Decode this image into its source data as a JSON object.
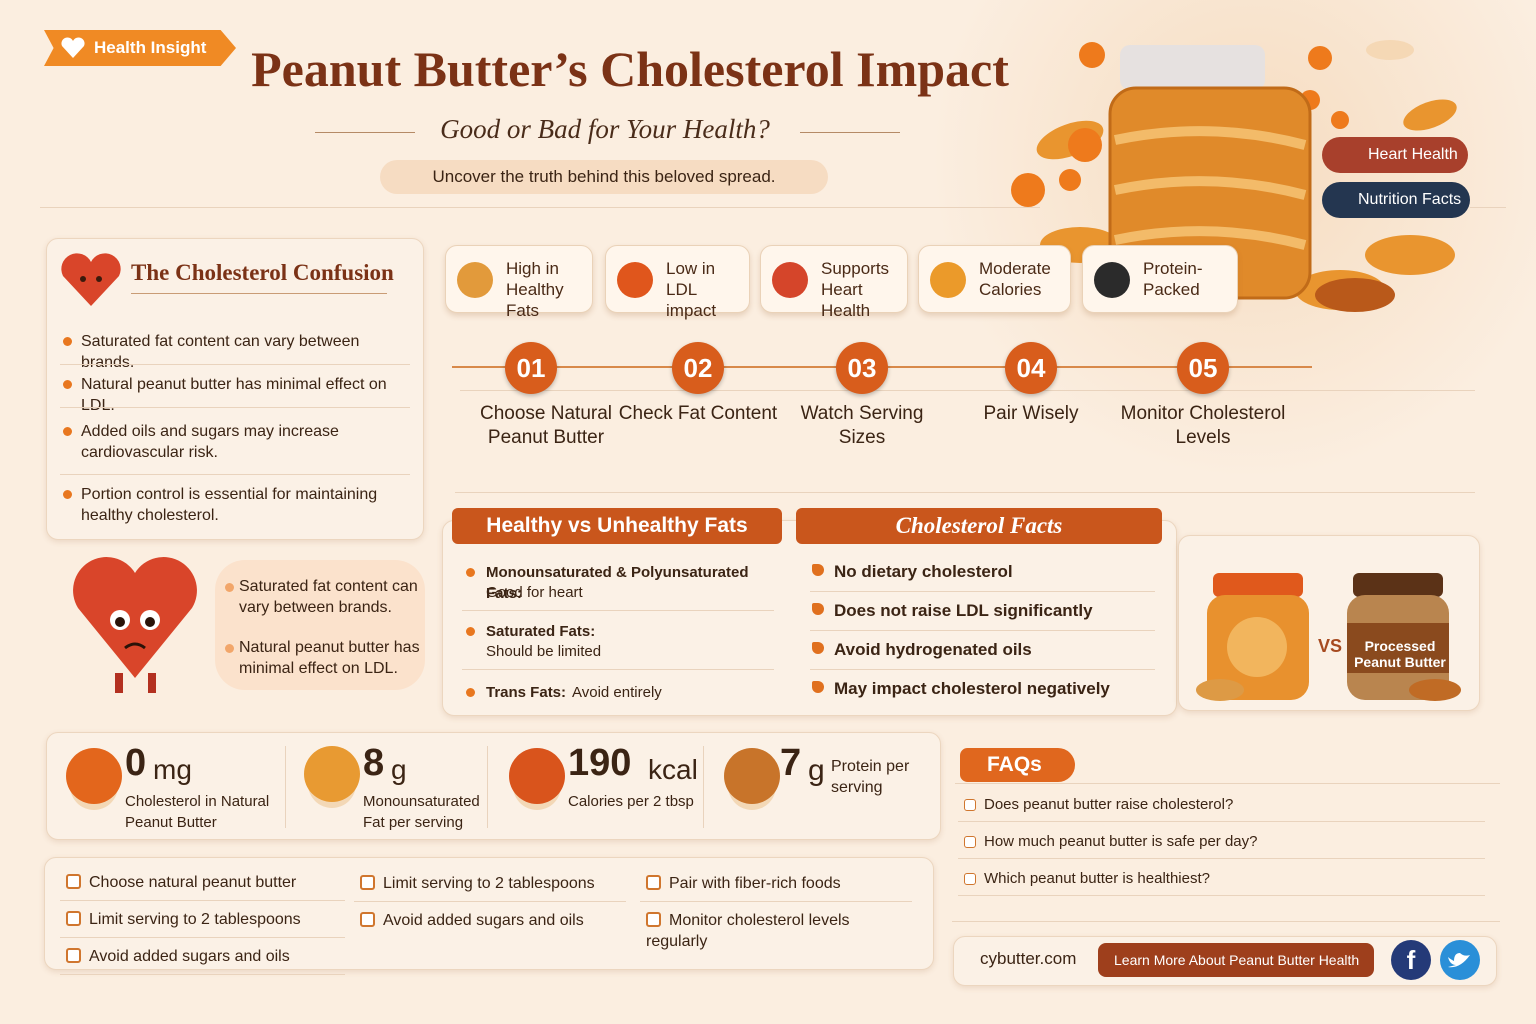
{
  "header": {
    "badge": "Health Insight",
    "title": "Peanut Butter’s Cholesterol Impact",
    "subtitle": "Good or Bad for Your Health?",
    "tagline": "Uncover the truth behind this beloved spread.",
    "tags": [
      "Heart Health",
      "Nutrition Facts"
    ]
  },
  "confusion": {
    "title": "The Cholesterol Confusion",
    "items": [
      "Saturated fat content can vary between brands.",
      "Natural peanut butter has minimal effect on LDL.",
      "Added oils and sugars may increase cardiovascular risk.",
      "Portion control is essential for maintaining healthy cholesterol."
    ]
  },
  "features": [
    "High in Healthy Fats",
    "Low in LDL impact",
    "Supports Heart Health",
    "Moderate Calories",
    "Protein-Packed"
  ],
  "steps": [
    {
      "number": "01",
      "label": "Choose Natural Peanut Butter"
    },
    {
      "number": "02",
      "label": "Check Fat Content"
    },
    {
      "number": "03",
      "label": "Watch Serving Sizes"
    },
    {
      "number": "04",
      "label": "Pair Wisely"
    },
    {
      "number": "05",
      "label": "Monitor Cholesterol Levels"
    }
  ],
  "heart_notes": [
    "Saturated fat content can vary between brands.",
    "Natural peanut butter has minimal effect on LDL."
  ],
  "fats": {
    "title": "Healthy vs Unhealthy Fats",
    "items": [
      {
        "label": "Monounsaturated & Polyunsaturated Fats:",
        "note": "Good for heart"
      },
      {
        "label": "Saturated Fats:",
        "note": "Should be limited"
      },
      {
        "label": "Trans Fats:",
        "note": "Avoid entirely"
      }
    ]
  },
  "facts": {
    "title": "Cholesterol Facts",
    "items": [
      "No dietary cholesterol",
      "Does not raise LDL significantly",
      "Avoid hydrogenated oils",
      "May impact cholesterol negatively"
    ]
  },
  "comparison": {
    "vs": "VS",
    "processed": "Processed Peanut Butter"
  },
  "stats": [
    {
      "value": 0,
      "unit": "mg",
      "label": "Cholesterol in Natural Peanut Butter"
    },
    {
      "value": 8,
      "unit": "g",
      "label": "Monounsaturated Fat per serving"
    },
    {
      "value": 190,
      "unit": "kcal",
      "label": "Calories per 2 tbsp"
    },
    {
      "value": 7,
      "unit": "g",
      "label": "Protein per serving"
    }
  ],
  "checklist": [
    [
      "Choose natural peanut butter",
      "Limit serving to 2 tablespoons",
      "Avoid added sugars and oils"
    ],
    [
      "Limit serving to 2 tablespoons",
      "Avoid added sugars and oils"
    ],
    [
      "Pair with fiber-rich foods",
      "Monitor cholesterol levels regularly"
    ]
  ],
  "faq": {
    "title": "FAQs",
    "questions": [
      "Does peanut butter raise cholesterol?",
      "How much peanut butter is safe per day?",
      "Which peanut butter is healthiest?"
    ]
  },
  "footer": {
    "site": "cybutter.com",
    "button": "Learn More About Peanut Butter Health"
  }
}
